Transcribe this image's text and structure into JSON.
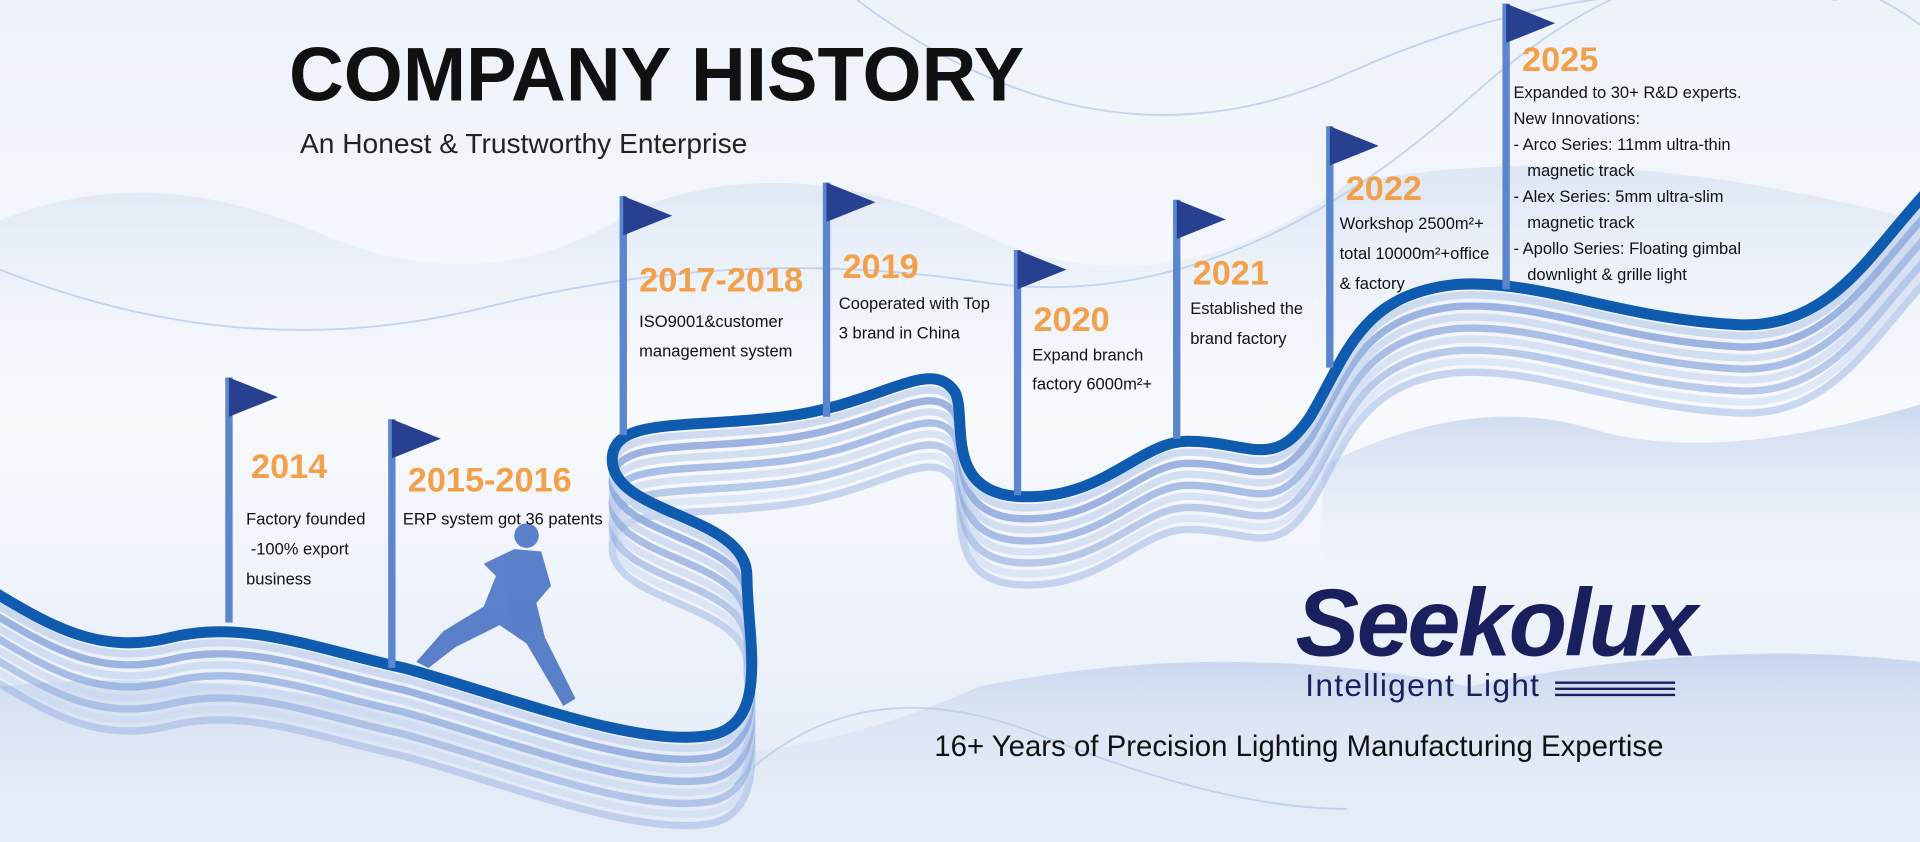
{
  "header": {
    "title": "COMPANY HISTORY",
    "subtitle": "An Honest & Trustworthy Enterprise"
  },
  "milestones": [
    {
      "year": "2014",
      "lines": [
        "Factory founded",
        " -100% export",
        "business"
      ]
    },
    {
      "year": "2015-2016",
      "lines": [
        "ERP system got 36 patents"
      ]
    },
    {
      "year": "2017-2018",
      "lines": [
        "ISO9001&customer",
        "management system"
      ]
    },
    {
      "year": "2019",
      "lines": [
        "Cooperated with Top",
        "3 brand in China"
      ]
    },
    {
      "year": "2020",
      "lines": [
        "Expand branch",
        "factory 6000m²+"
      ]
    },
    {
      "year": "2021",
      "lines": [
        "Established the",
        "brand factory"
      ]
    },
    {
      "year": "2022",
      "lines": [
        "Workshop 2500m²+",
        "total 10000m²+office",
        "& factory"
      ]
    },
    {
      "year": "2025",
      "lines": [
        "Expanded to 30+ R&D experts.",
        "New Innovations:",
        "- Arco Series: 11mm ultra-thin",
        "   magnetic track",
        "- Alex Series: 5mm ultra-slim",
        "   magnetic track",
        "- Apollo Series: Floating gimbal",
        "   downlight & grille light"
      ]
    }
  ],
  "brand": {
    "name": "Seekolux",
    "tagline": "Intelligent Light"
  },
  "footer": "16+ Years of Precision Lighting Manufacturing Expertise"
}
